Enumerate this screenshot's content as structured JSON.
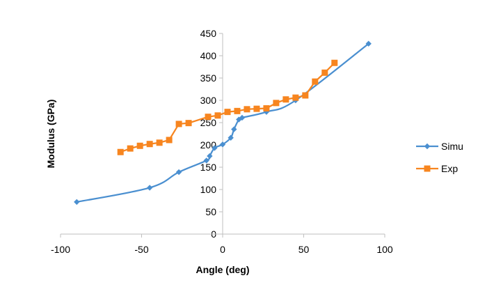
{
  "chart_data": {
    "type": "scatter",
    "title": "",
    "xlabel": "Angle (deg)",
    "ylabel": "Modulus (GPa)",
    "xlim": [
      -100,
      100
    ],
    "ylim": [
      0,
      450
    ],
    "xticks": [
      -100,
      -50,
      0,
      50,
      100
    ],
    "yticks": [
      0,
      50,
      100,
      150,
      200,
      250,
      300,
      350,
      400,
      450
    ],
    "grid": false,
    "legend_position": "right",
    "series": [
      {
        "name": "Simu",
        "color": "#4A8FD0",
        "marker": "diamond",
        "line": "smooth",
        "x": [
          -90,
          -45,
          -27,
          -10,
          -8,
          -5,
          0,
          5,
          7,
          10,
          12,
          27,
          45,
          90
        ],
        "y": [
          72,
          104,
          139,
          165,
          175,
          193,
          201,
          216,
          235,
          257,
          261,
          274,
          300,
          427
        ]
      },
      {
        "name": "Exp",
        "color": "#F7851F",
        "marker": "square",
        "line": "straight",
        "x": [
          -63,
          -57,
          -51,
          -45,
          -39,
          -33,
          -27,
          -21,
          -9,
          -3,
          3,
          9,
          15,
          21,
          27,
          33,
          39,
          45,
          51,
          57,
          63,
          69
        ],
        "y": [
          184,
          192,
          198,
          202,
          205,
          211,
          247,
          249,
          263,
          266,
          274,
          276,
          280,
          281,
          282,
          294,
          302,
          306,
          311,
          342,
          362,
          384
        ]
      }
    ]
  }
}
